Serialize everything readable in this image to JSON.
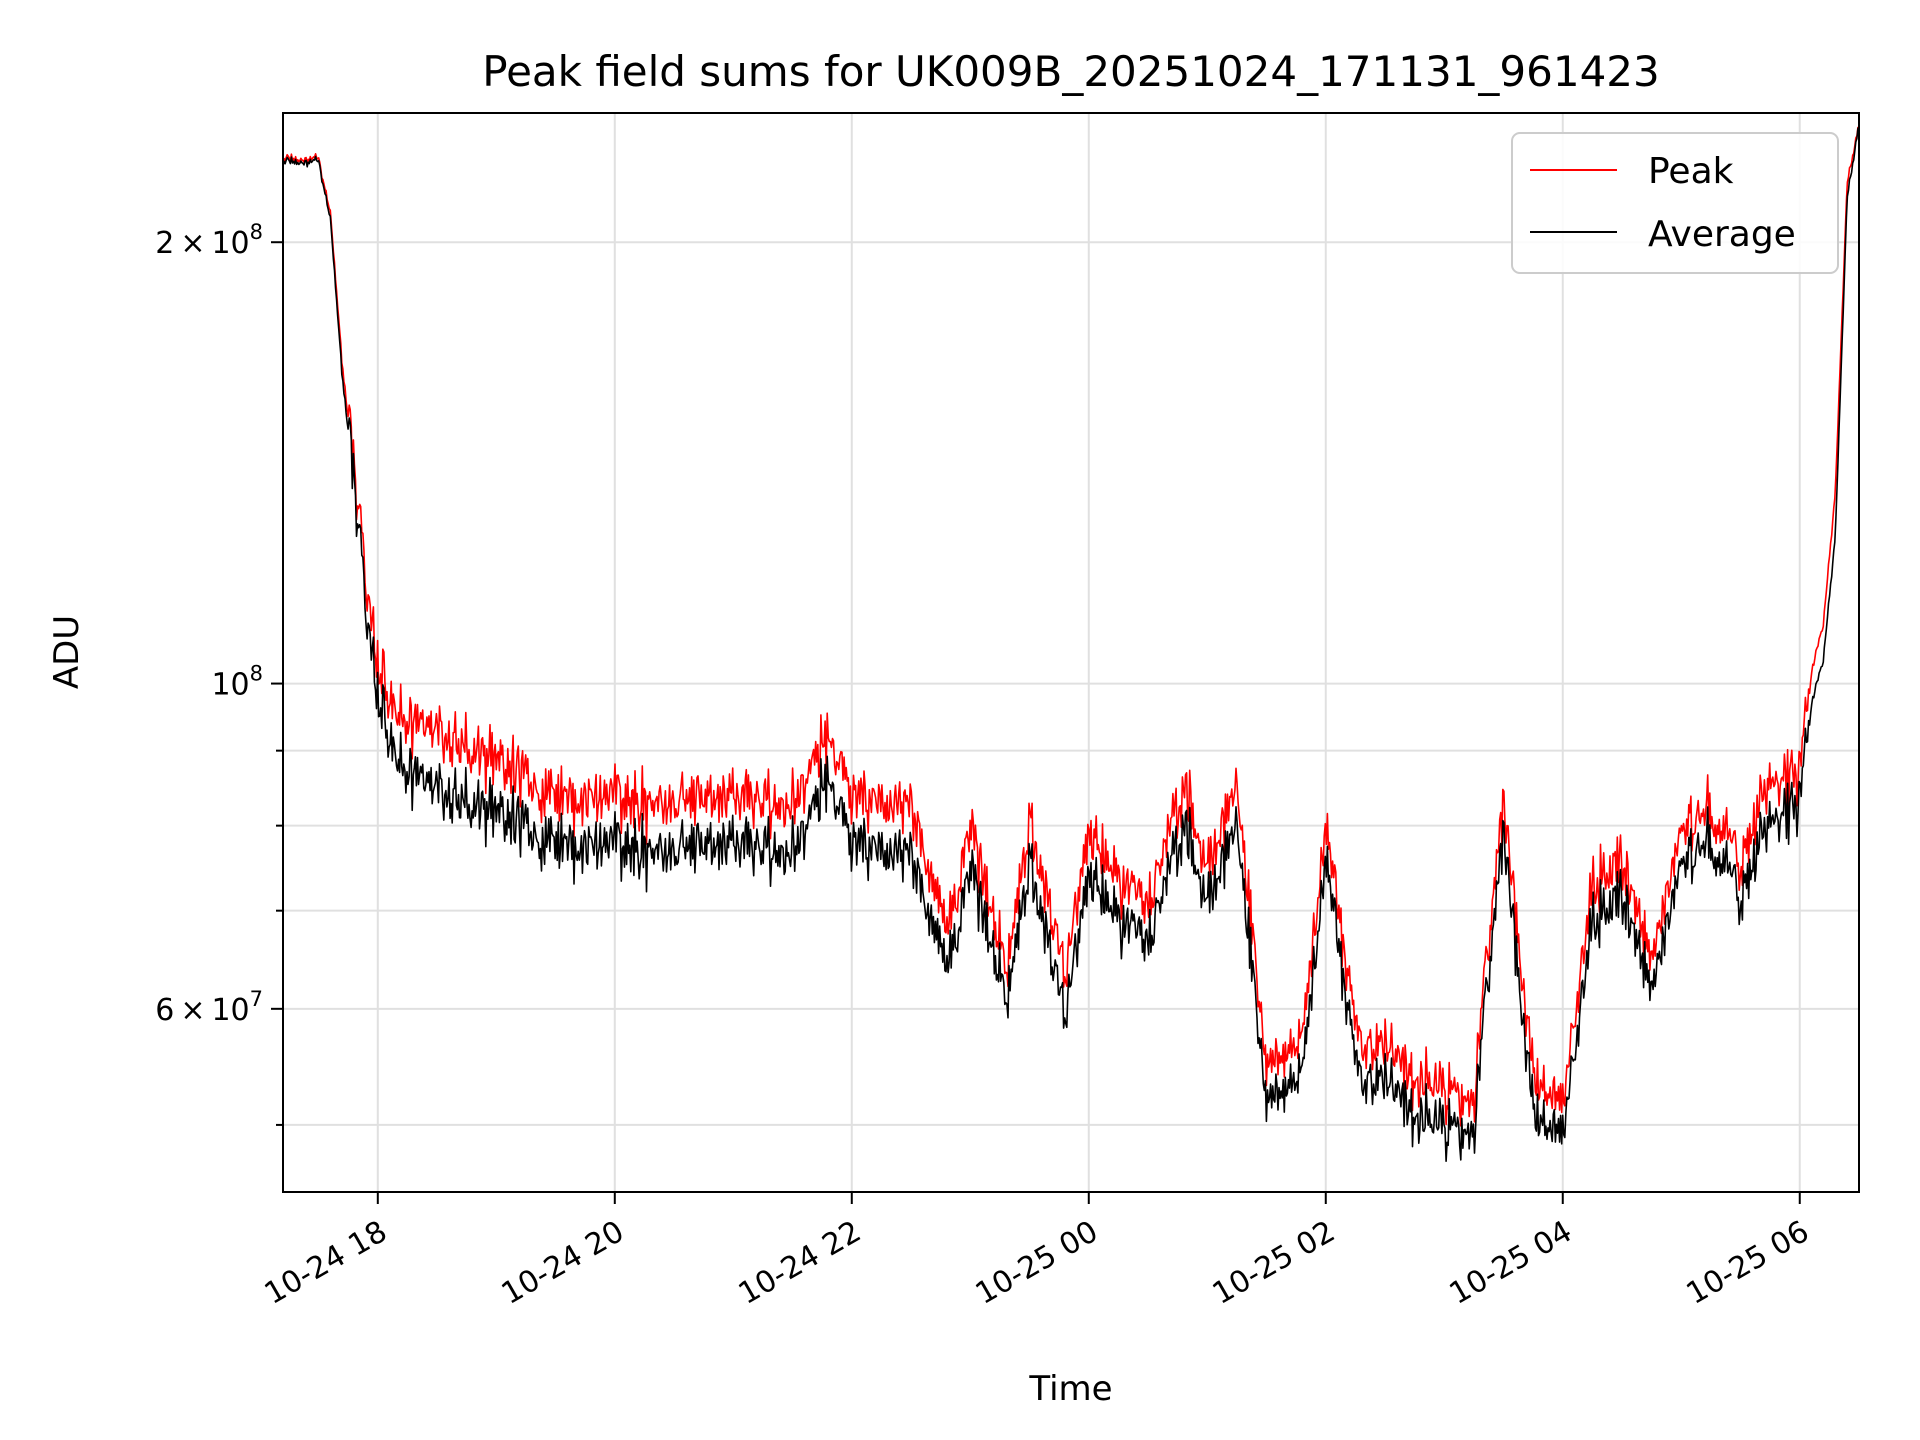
{
  "chart_data": {
    "type": "line",
    "title": "Peak field sums for UK009B_20251024_171131_961423",
    "xlabel": "Time",
    "ylabel": "ADU",
    "yscale": "log",
    "ylim": [
      45000000,
      245000000
    ],
    "xlim_hours": [
      17.2,
      30.5
    ],
    "grid": true,
    "legend_position": "top-right",
    "x_ticks": [
      {
        "hour": 18,
        "label": "10-24 18"
      },
      {
        "hour": 20,
        "label": "10-24 20"
      },
      {
        "hour": 22,
        "label": "10-24 22"
      },
      {
        "hour": 24,
        "label": "10-25 00"
      },
      {
        "hour": 26,
        "label": "10-25 02"
      },
      {
        "hour": 28,
        "label": "10-25 04"
      },
      {
        "hour": 30,
        "label": "10-25 06"
      }
    ],
    "y_major_ticks": [
      {
        "value": 200000000,
        "mantissa": "2",
        "exponent": "8"
      },
      {
        "value": 100000000,
        "mantissa": "",
        "exponent": "8"
      },
      {
        "value": 60000000,
        "mantissa": "6",
        "exponent": "7"
      }
    ],
    "y_minor_ticks": [
      50000000,
      70000000,
      80000000,
      90000000
    ],
    "series": [
      {
        "name": "Peak",
        "color": "#ff0000",
        "x": [
          "10-24 17:12",
          "10-24 17:30",
          "10-24 17:36",
          "10-24 17:42",
          "10-24 17:48",
          "10-24 17:54",
          "10-24 18:00",
          "10-24 18:12",
          "10-24 18:30",
          "10-24 19:00",
          "10-24 19:30",
          "10-24 20:00",
          "10-24 20:30",
          "10-24 21:00",
          "10-24 21:30",
          "10-24 21:48",
          "10-24 22:00",
          "10-24 22:30",
          "10-24 22:48",
          "10-24 23:00",
          "10-24 23:18",
          "10-24 23:30",
          "10-24 23:48",
          "10-25 00:00",
          "10-25 00:30",
          "10-25 00:48",
          "10-25 01:00",
          "10-25 01:15",
          "10-25 01:30",
          "10-25 01:48",
          "10-25 02:00",
          "10-25 02:18",
          "10-25 02:30",
          "10-25 02:45",
          "10-25 03:00",
          "10-25 03:15",
          "10-25 03:30",
          "10-25 03:45",
          "10-25 04:00",
          "10-25 04:15",
          "10-25 04:30",
          "10-25 04:45",
          "10-25 05:00",
          "10-25 05:15",
          "10-25 05:30",
          "10-25 05:45",
          "10-25 06:00",
          "10-25 06:06",
          "10-25 06:12",
          "10-25 06:18",
          "10-25 06:24",
          "10-25 06:30"
        ],
        "y": [
          228000000,
          228000000,
          210000000,
          165000000,
          140000000,
          118000000,
          102000000,
          95000000,
          92000000,
          89000000,
          84000000,
          83000000,
          83000000,
          84000000,
          83000000,
          92000000,
          84000000,
          82000000,
          68000000,
          80000000,
          64000000,
          81000000,
          64000000,
          78000000,
          70000000,
          86000000,
          76000000,
          85000000,
          55000000,
          57000000,
          80000000,
          56000000,
          57000000,
          54000000,
          53000000,
          52000000,
          84000000,
          54000000,
          52000000,
          73000000,
          76000000,
          65000000,
          79000000,
          82000000,
          76000000,
          85000000,
          87000000,
          102000000,
          110000000,
          135000000,
          220000000,
          240000000
        ]
      },
      {
        "name": "Average",
        "color": "#000000",
        "x": [
          "10-24 17:12",
          "10-24 17:30",
          "10-24 17:36",
          "10-24 17:42",
          "10-24 17:48",
          "10-24 17:54",
          "10-24 18:00",
          "10-24 18:12",
          "10-24 18:30",
          "10-24 19:00",
          "10-24 19:30",
          "10-24 20:00",
          "10-24 20:30",
          "10-24 21:00",
          "10-24 21:30",
          "10-24 21:48",
          "10-24 22:00",
          "10-24 22:30",
          "10-24 22:48",
          "10-24 23:00",
          "10-24 23:18",
          "10-24 23:30",
          "10-24 23:48",
          "10-25 00:00",
          "10-25 00:30",
          "10-25 00:48",
          "10-25 01:00",
          "10-25 01:15",
          "10-25 01:30",
          "10-25 01:48",
          "10-25 02:00",
          "10-25 02:18",
          "10-25 02:30",
          "10-25 02:45",
          "10-25 03:00",
          "10-25 03:15",
          "10-25 03:30",
          "10-25 03:45",
          "10-25 04:00",
          "10-25 04:15",
          "10-25 04:30",
          "10-25 04:45",
          "10-25 05:00",
          "10-25 05:15",
          "10-25 05:30",
          "10-25 05:45",
          "10-25 06:00",
          "10-25 06:06",
          "10-25 06:12",
          "10-25 06:18",
          "10-25 06:24",
          "10-25 06:30"
        ],
        "y": [
          227000000,
          227000000,
          208000000,
          162000000,
          137000000,
          113000000,
          97000000,
          88000000,
          84000000,
          82000000,
          78000000,
          77000000,
          77000000,
          78000000,
          77000000,
          86000000,
          78000000,
          76000000,
          64000000,
          75000000,
          61000000,
          76000000,
          60000000,
          73000000,
          66000000,
          81000000,
          72000000,
          80000000,
          52000000,
          54000000,
          76000000,
          53000000,
          54000000,
          51000000,
          50000000,
          49500000,
          80000000,
          51000000,
          49500000,
          69000000,
          72000000,
          62000000,
          75000000,
          78000000,
          72000000,
          80000000,
          83000000,
          97000000,
          104000000,
          126000000,
          215000000,
          240000000
        ]
      }
    ]
  }
}
